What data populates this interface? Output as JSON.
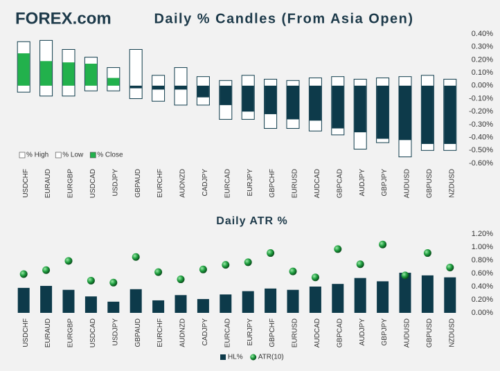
{
  "logo": "FOREX.com",
  "chart_data": [
    {
      "type": "candle",
      "title": "Daily % Candles (From Asia Open)",
      "categories": [
        "USDCHF",
        "EURAUD",
        "EURGBP",
        "USDCAD",
        "USDJPY",
        "GBPAUD",
        "EURCHF",
        "AUDNZD",
        "CADJPY",
        "EURCAD",
        "EURJPY",
        "GBPCHF",
        "EURUSD",
        "AUDCAD",
        "GBPCAD",
        "AUDJPY",
        "GBPJPY",
        "AUDUSD",
        "GBPUSD",
        "NZDUSD"
      ],
      "series": [
        {
          "name": "% High",
          "color": "#ffffff",
          "values": [
            0.34,
            0.35,
            0.28,
            0.22,
            0.14,
            0.28,
            0.08,
            0.14,
            0.07,
            0.04,
            0.08,
            0.05,
            0.04,
            0.06,
            0.07,
            0.05,
            0.06,
            0.07,
            0.08,
            0.05
          ]
        },
        {
          "name": "% Low",
          "color": "#ffffff",
          "values": [
            -0.05,
            -0.08,
            -0.08,
            -0.04,
            -0.04,
            -0.1,
            -0.12,
            -0.15,
            -0.15,
            -0.26,
            -0.26,
            -0.33,
            -0.33,
            -0.35,
            -0.38,
            -0.49,
            -0.44,
            -0.55,
            -0.5,
            -0.5
          ]
        },
        {
          "name": "% Close",
          "color": "#22b14c",
          "negative_color": "#0d3a4a",
          "values": [
            0.25,
            0.19,
            0.18,
            0.17,
            0.06,
            -0.02,
            -0.03,
            -0.03,
            -0.09,
            -0.15,
            -0.2,
            -0.22,
            -0.26,
            -0.27,
            -0.33,
            -0.36,
            -0.41,
            -0.42,
            -0.45,
            -0.45
          ]
        }
      ],
      "ylim": [
        -0.6,
        0.4
      ],
      "yticks": [
        {
          "value": 0.4,
          "label": "0.40%"
        },
        {
          "value": 0.3,
          "label": "0.30%"
        },
        {
          "value": 0.2,
          "label": "0.20%"
        },
        {
          "value": 0.1,
          "label": "0.10%"
        },
        {
          "value": 0,
          "label": "0.00%"
        },
        {
          "value": -0.1,
          "label": "-0.10%"
        },
        {
          "value": -0.2,
          "label": "-0.20%"
        },
        {
          "value": -0.3,
          "label": "-0.30%"
        },
        {
          "value": -0.4,
          "label": "-0.40%"
        },
        {
          "value": -0.5,
          "label": "-0.50%"
        },
        {
          "value": -0.6,
          "label": "-0.60%"
        }
      ],
      "legend": "lower left",
      "grid": false
    },
    {
      "type": "combo",
      "title": "Daily ATR %",
      "categories": [
        "USDCHF",
        "EURAUD",
        "EURGBP",
        "USDCAD",
        "USDJPY",
        "GBPAUD",
        "EURCHF",
        "AUDNZD",
        "CADJPY",
        "EURCAD",
        "EURJPY",
        "GBPCHF",
        "EURUSD",
        "AUDCAD",
        "GBPCAD",
        "AUDJPY",
        "GBPJPY",
        "AUDUSD",
        "GBPUSD",
        "NZDUSD"
      ],
      "series": [
        {
          "name": "HL%",
          "type": "bar",
          "color": "#0d3a4a",
          "values": [
            0.38,
            0.41,
            0.35,
            0.25,
            0.17,
            0.36,
            0.19,
            0.27,
            0.21,
            0.28,
            0.33,
            0.37,
            0.35,
            0.4,
            0.44,
            0.53,
            0.48,
            0.61,
            0.57,
            0.54
          ]
        },
        {
          "name": "ATR(10)",
          "type": "scatter",
          "color": "#1e9e3e",
          "values": [
            0.59,
            0.65,
            0.79,
            0.49,
            0.46,
            0.85,
            0.62,
            0.51,
            0.66,
            0.73,
            0.77,
            0.91,
            0.63,
            0.54,
            0.97,
            0.74,
            1.04,
            0.57,
            0.91,
            0.69
          ]
        }
      ],
      "ylim": [
        0,
        1.2
      ],
      "yticks": [
        {
          "value": 1.2,
          "label": "1.20%"
        },
        {
          "value": 1.0,
          "label": "1.00%"
        },
        {
          "value": 0.8,
          "label": "0.80%"
        },
        {
          "value": 0.6,
          "label": "0.60%"
        },
        {
          "value": 0.4,
          "label": "0.40%"
        },
        {
          "value": 0.2,
          "label": "0.20%"
        },
        {
          "value": 0,
          "label": "0.00%"
        }
      ],
      "legend": "bottom",
      "grid": false
    }
  ]
}
